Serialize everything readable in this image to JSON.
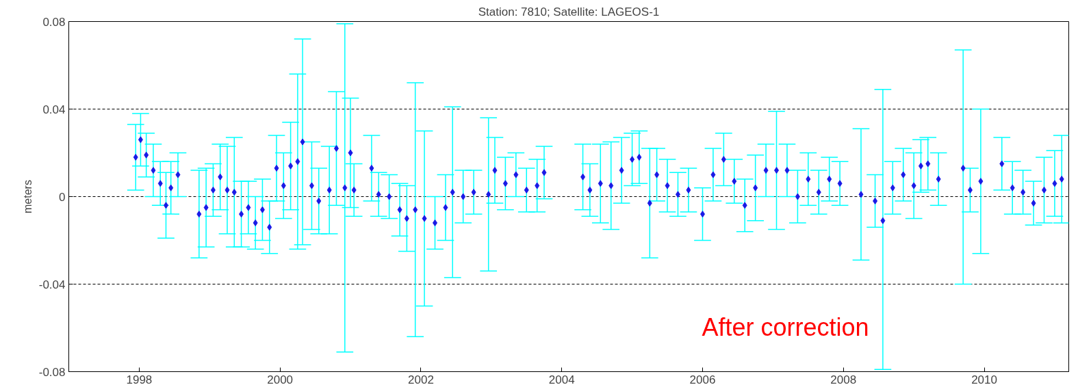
{
  "chart_data": {
    "type": "scatter",
    "title": "Station: 7810; Satellite: LAGEOS-1",
    "ylabel": "meters",
    "annotations": [
      "After correction"
    ],
    "xlim": [
      1997,
      2011.2
    ],
    "xticks": [
      1998,
      2000,
      2002,
      2004,
      2006,
      2008,
      2010
    ],
    "ylim": [
      -0.08,
      0.08
    ],
    "yticks": [
      -0.08,
      -0.04,
      0,
      0.04,
      0.08
    ],
    "grid": "y",
    "marker": "diamond",
    "series": [
      {
        "color": "#1a1ae6",
        "x": [
          1997.95,
          1998.02,
          1998.1,
          1998.2,
          1998.3,
          1998.38,
          1998.45,
          1998.55,
          1998.85,
          1998.95,
          1999.05,
          1999.15,
          1999.25,
          1999.35,
          1999.45,
          1999.55,
          1999.65,
          1999.75,
          1999.85,
          1999.95,
          2000.05,
          2000.15,
          2000.25,
          2000.32,
          2000.45,
          2000.55,
          2000.7,
          2000.8,
          2000.92,
          2001.0,
          2001.05,
          2001.3,
          2001.4,
          2001.55,
          2001.7,
          2001.8,
          2001.92,
          2002.05,
          2002.2,
          2002.35,
          2002.45,
          2002.6,
          2002.75,
          2002.96,
          2003.05,
          2003.2,
          2003.35,
          2003.5,
          2003.65,
          2003.75,
          2004.3,
          2004.4,
          2004.55,
          2004.7,
          2004.85,
          2005.0,
          2005.1,
          2005.25,
          2005.35,
          2005.5,
          2005.65,
          2005.8,
          2006.0,
          2006.15,
          2006.3,
          2006.45,
          2006.6,
          2006.75,
          2006.9,
          2007.05,
          2007.2,
          2007.35,
          2007.5,
          2007.65,
          2007.8,
          2007.95,
          2008.25,
          2008.56,
          2008.45,
          2008.7,
          2008.85,
          2009.0,
          2009.1,
          2009.2,
          2009.35,
          2009.7,
          2009.8,
          2009.95,
          2010.25,
          2010.4,
          2010.55,
          2010.7,
          2010.85,
          2011.0,
          2011.1
        ],
        "values": [
          0.018,
          0.026,
          0.019,
          0.012,
          0.006,
          -0.004,
          0.004,
          0.01,
          -0.008,
          -0.005,
          0.003,
          0.009,
          0.003,
          0.002,
          -0.008,
          -0.005,
          -0.012,
          -0.006,
          -0.014,
          0.013,
          0.005,
          0.014,
          0.016,
          0.025,
          0.005,
          -0.002,
          0.003,
          0.022,
          0.004,
          0.02,
          0.003,
          0.013,
          0.001,
          0.0,
          -0.006,
          -0.01,
          -0.006,
          -0.01,
          -0.012,
          -0.005,
          0.002,
          0.0,
          0.002,
          0.001,
          0.012,
          0.006,
          0.01,
          0.003,
          0.005,
          0.011,
          0.009,
          0.003,
          0.006,
          0.005,
          0.012,
          0.017,
          0.018,
          -0.003,
          0.01,
          0.005,
          0.001,
          0.003,
          -0.008,
          0.01,
          0.017,
          0.007,
          -0.004,
          0.004,
          0.012,
          0.012,
          0.012,
          0.0,
          0.008,
          0.002,
          0.008,
          0.006,
          0.001,
          -0.011,
          -0.002,
          0.004,
          0.01,
          0.005,
          0.014,
          0.015,
          0.008,
          0.013,
          0.003,
          0.007,
          0.015,
          0.004,
          0.002,
          -0.003,
          0.003,
          0.006,
          0.008
        ],
        "errors": [
          0.015,
          0.012,
          0.01,
          0.012,
          0.01,
          0.015,
          0.012,
          0.01,
          0.02,
          0.018,
          0.012,
          0.015,
          0.02,
          0.025,
          0.015,
          0.012,
          0.012,
          0.014,
          0.012,
          0.015,
          0.015,
          0.02,
          0.04,
          0.047,
          0.02,
          0.015,
          0.02,
          0.026,
          0.075,
          0.025,
          0.012,
          0.015,
          0.01,
          0.01,
          0.012,
          0.015,
          0.058,
          0.04,
          0.012,
          0.015,
          0.039,
          0.012,
          0.01,
          0.035,
          0.015,
          0.012,
          0.01,
          0.01,
          0.012,
          0.012,
          0.015,
          0.012,
          0.018,
          0.02,
          0.015,
          0.012,
          0.012,
          0.025,
          0.012,
          0.012,
          0.01,
          0.01,
          0.012,
          0.012,
          0.012,
          0.01,
          0.012,
          0.015,
          0.012,
          0.027,
          0.012,
          0.012,
          0.012,
          0.01,
          0.01,
          0.01,
          0.03,
          [
            -0.079,
            0.049
          ],
          0.012,
          0.012,
          0.012,
          0.015,
          0.012,
          0.012,
          0.012,
          [
            -0.04,
            0.067
          ],
          0.01,
          0.033,
          0.012,
          0.012,
          0.01,
          0.01,
          0.015,
          0.015,
          0.02
        ]
      }
    ]
  }
}
